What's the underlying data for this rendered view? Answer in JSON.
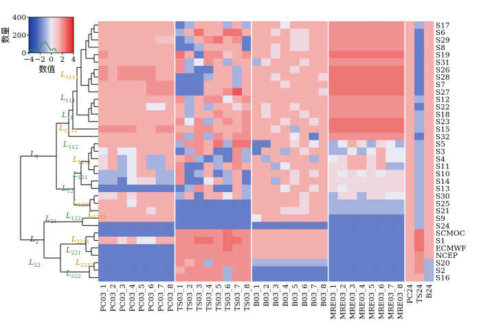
{
  "chart_data": {
    "type": "heatmap",
    "colorbar": {
      "label": "数值",
      "ylabel": "数量",
      "x_ticks": [
        "−4",
        "−2",
        "0",
        "2",
        "4"
      ],
      "y_ticks": [
        "0",
        "200",
        "400"
      ],
      "range": [
        -4,
        4
      ],
      "colors": [
        "#1b3ea0",
        "#3d5bb8",
        "#8f9fd6",
        "#e9e9f4",
        "#f6b8b8",
        "#ee6a6a",
        "#e01e1e"
      ]
    },
    "columns": [
      "PC03_1",
      "PC03_2",
      "PC03_3",
      "PC03_4",
      "PC03_5",
      "PC03_6",
      "PC03_7",
      "PC03_8",
      "TS03_1",
      "TS03_2",
      "TS03_3",
      "TS03_4",
      "TS03_5",
      "TS03_6",
      "TS03_7",
      "TS03_8",
      "B03_1",
      "B03_2",
      "B03_3",
      "B03_4",
      "B03_5",
      "B03_6",
      "B03_7",
      "B03_8",
      "MRE03_1",
      "MRE03_2",
      "MRE03_3",
      "MRE03_4",
      "MRE03_5",
      "MRE03_6",
      "MRE03_7",
      "MRE03_8",
      "PC24",
      "TS24",
      "B24"
    ],
    "rows": [
      "S17",
      "S6",
      "S29",
      "S8",
      "S19",
      "S31",
      "S26",
      "S28",
      "S7",
      "S27",
      "S12",
      "S22",
      "S18",
      "S23",
      "S15",
      "S32",
      "S5",
      "S3",
      "S4",
      "S11",
      "S10",
      "S14",
      "S13",
      "S30",
      "S25",
      "S21",
      "S9",
      "S24",
      "SCMOC",
      "S1",
      "ECMWF",
      "NCEP",
      "S20",
      "S2",
      "S16"
    ],
    "values": [
      [
        1.5,
        1.5,
        1.5,
        1.5,
        1.5,
        1.5,
        1.5,
        1.5,
        -2,
        -1,
        1.5,
        1.5,
        1.5,
        -1,
        1.5,
        -1,
        1.5,
        1.5,
        1.5,
        0,
        1.5,
        1.5,
        1.5,
        1.5,
        2,
        2,
        2,
        2,
        2,
        2,
        2,
        2,
        1.5,
        -1,
        1.5
      ],
      [
        1.5,
        1.5,
        1.5,
        1.5,
        1.5,
        1.5,
        1.5,
        1.5,
        -1,
        1.5,
        2.5,
        1.5,
        1.5,
        2.5,
        2.5,
        1.5,
        1.5,
        1.5,
        0.5,
        1.5,
        0.5,
        0.5,
        1.5,
        1.5,
        2,
        2,
        2,
        2,
        2,
        2,
        2,
        2,
        1.5,
        -2,
        1.5
      ],
      [
        1.5,
        1.5,
        1.5,
        1.5,
        1.5,
        1.5,
        1,
        1,
        -2,
        -1,
        1.5,
        2,
        2.5,
        1.5,
        2,
        -2,
        1.5,
        1.5,
        1.5,
        1.5,
        0.5,
        0.5,
        1.5,
        1.5,
        2,
        2,
        2,
        2,
        2,
        2,
        2,
        2,
        1.5,
        -2,
        1.5
      ],
      [
        1.5,
        1.5,
        1.5,
        1.5,
        1.5,
        1.5,
        1.5,
        1.5,
        -2,
        -2,
        -1,
        1.5,
        1.5,
        1.5,
        1.5,
        -2,
        1.5,
        1.5,
        0.5,
        1.5,
        0.5,
        0.5,
        1.5,
        1.5,
        2,
        2,
        2,
        2,
        2,
        2,
        2,
        2,
        1.5,
        -2,
        1.5
      ],
      [
        2,
        1.5,
        1.5,
        1.5,
        1.5,
        1.5,
        1.5,
        1.5,
        2.5,
        1.5,
        -2,
        2,
        2,
        1,
        1.5,
        2,
        1.5,
        1.5,
        0.5,
        1.5,
        1.5,
        1.5,
        1.5,
        1.5,
        2.5,
        2.5,
        2.5,
        2.5,
        2.5,
        2.5,
        2.5,
        2.5,
        1.5,
        -2,
        1.5
      ],
      [
        1.5,
        1.5,
        1.5,
        1.5,
        1.5,
        1.5,
        1.5,
        1.5,
        2,
        -1,
        0,
        2,
        1.5,
        -1,
        1.5,
        1.5,
        -1,
        0.5,
        1.5,
        1.5,
        1.5,
        0.5,
        1.5,
        1.5,
        2,
        2,
        2,
        2,
        2,
        2,
        2,
        2,
        1.5,
        -2,
        1.5
      ],
      [
        2,
        1.5,
        2,
        2,
        2,
        2,
        1.5,
        1.5,
        2,
        -1,
        -2,
        -2,
        1.5,
        1.5,
        -1,
        1.5,
        1.5,
        1.5,
        1.5,
        1.5,
        0.5,
        1.5,
        1.5,
        1.5,
        2.5,
        2.5,
        2.5,
        2.5,
        2.5,
        2.5,
        2.5,
        2.5,
        1.5,
        -2,
        1.5
      ],
      [
        2,
        1.5,
        2,
        2,
        2,
        2,
        1.5,
        1.5,
        -2,
        -2,
        -2,
        -1,
        1.5,
        1.5,
        -1,
        1.5,
        1.5,
        1.5,
        0.5,
        1.5,
        1.5,
        1.5,
        1.5,
        0.5,
        2.5,
        2.5,
        2.5,
        2.5,
        2.5,
        2.5,
        2.5,
        2.5,
        1.5,
        -2,
        1.5
      ],
      [
        1.5,
        1.5,
        1.5,
        1.5,
        1.5,
        2,
        2,
        2,
        -2,
        -2,
        -2,
        1.5,
        1.5,
        1.5,
        -1,
        1.5,
        1.5,
        1.5,
        1.5,
        0.5,
        1.5,
        1.5,
        1.5,
        1.5,
        2.5,
        2.5,
        2.5,
        2.5,
        2.5,
        2.5,
        2.5,
        2.5,
        1.5,
        -2,
        1.5
      ],
      [
        1.5,
        1.5,
        1.5,
        1.5,
        1.5,
        2,
        2,
        2,
        -2,
        -2,
        -2,
        1.5,
        1.5,
        2,
        3,
        1.5,
        1.5,
        1.5,
        1.5,
        1.5,
        1.5,
        1.5,
        1.5,
        0.5,
        2.5,
        2.5,
        2.5,
        2.5,
        2.5,
        2.5,
        2.5,
        2.5,
        1.5,
        -2,
        1.5
      ],
      [
        1.5,
        1.5,
        1.5,
        1.5,
        1.5,
        1.5,
        1.5,
        1.5,
        2,
        -1,
        1.5,
        2,
        2,
        0,
        1.5,
        2,
        1.5,
        1.5,
        1.5,
        1.5,
        1.5,
        1.5,
        1.5,
        1.5,
        2,
        2,
        2,
        2,
        2,
        2,
        2,
        2,
        1.5,
        -1,
        1.5
      ],
      [
        1.5,
        1.5,
        1.5,
        1.5,
        1.5,
        0,
        0,
        1.5,
        1.5,
        -1,
        1.5,
        -1,
        1.5,
        1.5,
        0.5,
        1.5,
        1.5,
        0.5,
        1.5,
        1.5,
        0.5,
        1.5,
        1.5,
        1.5,
        2,
        2,
        2,
        2,
        2,
        2,
        2,
        2,
        1.5,
        -2,
        1.5
      ],
      [
        1.5,
        1.5,
        1.5,
        1.5,
        1.5,
        1.5,
        1.5,
        1.5,
        1.5,
        -1,
        1.5,
        1.5,
        2,
        1.5,
        1.5,
        2,
        1.5,
        0.5,
        1.5,
        1.5,
        1.5,
        0.5,
        1.5,
        1.5,
        2,
        2,
        2,
        2,
        2,
        2,
        2,
        2,
        1.5,
        -1,
        1.5
      ],
      [
        1.5,
        1.5,
        1.5,
        1.5,
        1.5,
        1.5,
        1.5,
        1.5,
        2,
        0,
        2,
        -1,
        1.5,
        2,
        1.5,
        2,
        1.5,
        1.5,
        1.5,
        0.5,
        1.5,
        1.5,
        0.5,
        1.5,
        2.5,
        2.5,
        2.5,
        2.5,
        2.5,
        2.5,
        2.5,
        2.5,
        1.5,
        -1,
        1.5
      ],
      [
        2,
        2,
        2,
        2,
        1.5,
        1.5,
        2,
        2,
        1.5,
        1.5,
        2,
        2,
        1.5,
        1.5,
        1.5,
        2,
        1.5,
        1.5,
        0.5,
        1.5,
        -1,
        1.5,
        1.5,
        1.5,
        2.5,
        2.5,
        2.5,
        2.5,
        2.5,
        2.5,
        2.5,
        2.5,
        1.5,
        -1,
        1.5
      ],
      [
        1.5,
        1.5,
        1.5,
        1.5,
        1.5,
        1.5,
        1.5,
        1.5,
        2,
        -1,
        2,
        -1,
        2,
        1.5,
        2,
        2,
        1.5,
        1.5,
        1.5,
        1.5,
        0,
        1.5,
        -2,
        1.5,
        2,
        2,
        2,
        2,
        2,
        2,
        2,
        2,
        1.5,
        -2,
        1.5
      ],
      [
        1.5,
        1.5,
        1.5,
        1.5,
        1.5,
        1.5,
        1.5,
        1.5,
        -1,
        2,
        2,
        1.5,
        2.5,
        -1,
        2.5,
        2.5,
        -2,
        -2,
        1.5,
        1.5,
        0.5,
        1.5,
        0,
        1.5,
        -1,
        0,
        1.5,
        0.5,
        -1,
        0.5,
        0,
        -1,
        1.5,
        -1,
        1.5
      ],
      [
        0,
        1.5,
        0,
        0,
        1.5,
        1.5,
        1.5,
        1.5,
        -2,
        -1,
        2,
        1.5,
        -2,
        -2,
        2,
        -1,
        -2,
        1.5,
        1.5,
        -1,
        1.5,
        0.5,
        1.5,
        1.5,
        -1,
        -1,
        0,
        -1,
        0,
        1.5,
        0,
        0,
        1.5,
        -1,
        1.5
      ],
      [
        0.5,
        1.5,
        -1,
        0,
        1.5,
        -1,
        -1,
        1.5,
        1.5,
        2,
        -1,
        -2,
        -1,
        -2,
        2,
        -1,
        1.5,
        -1,
        1.5,
        1.5,
        1.5,
        1.5,
        -1,
        1.5,
        0,
        0.5,
        1.5,
        1.5,
        0.5,
        1.5,
        0,
        0,
        1.5,
        -1,
        1.5
      ],
      [
        0.5,
        1.5,
        -1,
        0,
        1.5,
        -1,
        -1,
        1.5,
        2,
        -2,
        -2,
        1.5,
        -1,
        1.5,
        2,
        1.5,
        1.5,
        1.5,
        -1,
        0,
        1.5,
        1.5,
        1.5,
        1.5,
        0.5,
        0.5,
        1.5,
        1.5,
        0.5,
        1.5,
        -1,
        -1,
        1.5,
        -1,
        1.5
      ],
      [
        -1,
        -1,
        -1,
        0,
        1.5,
        1.5,
        -1,
        -1,
        2,
        -2,
        -1,
        1.5,
        -2,
        -1,
        1.5,
        -2,
        1.5,
        1.5,
        1.5,
        1.5,
        0.5,
        1.5,
        0.5,
        1.5,
        0.5,
        0,
        0.5,
        0,
        0.5,
        0,
        0.5,
        0.5,
        1.5,
        -1,
        1.5
      ],
      [
        -1,
        -1,
        -2,
        0,
        0.5,
        0.5,
        -1,
        -1,
        2,
        -2,
        -2,
        0,
        1.5,
        -1,
        1.5,
        -2,
        1.5,
        1.5,
        -1,
        1.5,
        0.5,
        1.5,
        1.5,
        1.5,
        0.5,
        0.5,
        0.5,
        0.5,
        0.5,
        0.5,
        0.5,
        0.5,
        1.5,
        -1,
        1.5
      ],
      [
        -2,
        -2,
        -2,
        -2,
        -2,
        -2,
        -2,
        -2,
        -2,
        -1,
        2,
        1.5,
        -2,
        -2,
        1.5,
        -1,
        1.5,
        1.5,
        1.5,
        0,
        1.5,
        1.5,
        0.5,
        1.5,
        0.5,
        0,
        0.5,
        0.5,
        0.5,
        0.5,
        0.5,
        0.5,
        1.5,
        -1,
        1.5
      ],
      [
        0.5,
        0.5,
        1.5,
        0.5,
        1.5,
        1.5,
        1.5,
        1.5,
        -1,
        1.5,
        -2,
        1.5,
        1.5,
        0,
        1.5,
        -1,
        1.5,
        1.5,
        1.5,
        1.5,
        1.5,
        0.5,
        1.5,
        1.5,
        -1,
        0.5,
        0.5,
        -1,
        0.5,
        0.5,
        0,
        0,
        1.5,
        -1,
        1.5
      ],
      [
        1.5,
        1.5,
        1.5,
        0,
        1.5,
        1.5,
        1.5,
        1.5,
        -2,
        -2,
        -2,
        -2,
        -2,
        -2,
        -2,
        -2,
        1.5,
        1.5,
        1.5,
        1.5,
        1.5,
        0.5,
        1.5,
        1.5,
        -1,
        -1,
        -1,
        -1,
        -1,
        -1,
        -1,
        -1,
        1.5,
        -1,
        1.5
      ],
      [
        1.5,
        1.5,
        1.5,
        1.5,
        1.5,
        0.5,
        1.5,
        1.5,
        -2,
        -2,
        -2,
        -2,
        -2,
        -2,
        -2,
        -2,
        1.5,
        1.5,
        1.5,
        0.5,
        0.5,
        0.5,
        1.5,
        1.5,
        -1,
        -1,
        -1,
        -1,
        -1,
        -1,
        -1,
        -1,
        1.5,
        -1,
        1.5
      ],
      [
        1.5,
        1.5,
        1.5,
        1.5,
        1.5,
        1.5,
        1.5,
        1.5,
        -2,
        -2,
        -2,
        -2,
        -2,
        -2,
        -2,
        -2,
        0,
        1.5,
        1.5,
        1.5,
        1.5,
        1.5,
        1.5,
        1.5,
        -2,
        -2,
        -2,
        -2,
        -2,
        -2,
        -2,
        -2,
        1.5,
        -1,
        1.5
      ],
      [
        -2,
        -2,
        -2,
        -2,
        -2,
        -2,
        -2,
        -2,
        -2,
        -2,
        -2,
        -2,
        -2,
        -2,
        -2,
        -2,
        -2,
        -2,
        -2,
        -2,
        -2,
        -2,
        -2,
        -2,
        -2,
        -2,
        -2,
        -2,
        -2,
        -2,
        -2,
        -2,
        1.5,
        -1,
        1.5
      ],
      [
        -2,
        -2,
        -2,
        -2,
        -2,
        -2,
        -2,
        -2,
        2,
        2,
        2,
        2,
        2,
        2.5,
        2,
        2,
        1.5,
        1.5,
        1.5,
        1.5,
        1.5,
        1.5,
        1.5,
        1.5,
        -2,
        -2,
        -2,
        -2,
        -2,
        -2,
        -2,
        -2,
        1.5,
        2.5,
        1.5
      ],
      [
        1.5,
        1.5,
        0.5,
        1.5,
        0,
        0,
        1.5,
        1.5,
        2,
        2,
        2.5,
        2.5,
        2,
        2.5,
        2.5,
        2,
        1.5,
        1.5,
        1.5,
        1.5,
        1.5,
        1.5,
        1.5,
        1.5,
        -2,
        -2,
        -2,
        -2,
        -2,
        -2,
        -2,
        -2,
        1.5,
        2.5,
        1.5
      ],
      [
        -2,
        -2,
        -2,
        -2,
        -2,
        -2,
        -2,
        -2,
        2,
        2,
        2,
        2,
        2,
        2.5,
        2,
        2,
        1.5,
        1.5,
        1.5,
        1.5,
        1.5,
        1.5,
        1.5,
        1.5,
        -2,
        -2,
        -2,
        -2,
        -2,
        -2,
        -2,
        -2,
        1.5,
        2.5,
        1.5
      ],
      [
        -2,
        -2,
        -2,
        -2,
        -2,
        -2,
        -2,
        -2,
        2,
        2,
        2,
        2,
        2,
        2,
        2,
        2,
        1.5,
        1.5,
        1.5,
        1.5,
        1.5,
        1.5,
        1.5,
        1.5,
        -2,
        -2,
        -2,
        -2,
        -2,
        -2,
        -2,
        -2,
        1.5,
        2,
        1.5
      ],
      [
        -2,
        -2,
        -2,
        -2,
        -2,
        -2,
        -2,
        -2,
        2,
        1.5,
        2,
        -1,
        2,
        2,
        2,
        2,
        -1,
        -1,
        -1,
        -1,
        -1,
        -1,
        -1,
        -1,
        -2,
        -2,
        -2,
        -2,
        -2,
        -2,
        -2,
        -2,
        1.5,
        2,
        -1
      ],
      [
        -2,
        -2,
        -2,
        -2,
        -2,
        -2,
        -2,
        -2,
        1.5,
        2,
        2,
        2,
        2,
        -1,
        2,
        2,
        -2,
        -2,
        -2,
        -2,
        -2,
        -2,
        -2,
        -2,
        -2,
        -2,
        -2,
        -2,
        -2,
        -2,
        -2,
        -2,
        1.5,
        2,
        -1
      ],
      [
        -2,
        -2,
        -2,
        -2,
        -2,
        -2,
        -2,
        -2,
        2,
        2,
        2,
        2,
        2,
        -1,
        2,
        2,
        -2,
        -2,
        -2,
        -2,
        -2,
        -2,
        -2,
        -2,
        -2,
        -2,
        -2,
        -2,
        -2,
        -2,
        -2,
        -2,
        1.5,
        1.5,
        -1
      ]
    ],
    "dendrogram_labels": [
      {
        "text": "L",
        "sub": "1111",
        "color": "#c8860a"
      },
      {
        "text": "L",
        "sub": "111",
        "color": "#2e8b2e"
      },
      {
        "text": "L",
        "sub": "11",
        "color": "#2e8b2e"
      },
      {
        "text": "L",
        "sub": "112",
        "color": "#2e8b2e"
      },
      {
        "text": "L",
        "sub": "1112",
        "color": "#c8860a"
      },
      {
        "text": "L",
        "sub": "1",
        "color": "#333333"
      },
      {
        "text": "L",
        "sub": "1211",
        "color": "#c8860a"
      },
      {
        "text": "L",
        "sub": "121",
        "color": "#2e8b2e"
      },
      {
        "text": "L",
        "sub": "12",
        "color": "#2e8b2e"
      },
      {
        "text": "L",
        "sub": "1221",
        "color": "#c8860a"
      },
      {
        "text": "L",
        "sub": "122",
        "color": "#2e8b2e"
      },
      {
        "text": "L",
        "sub": "1222",
        "color": "#c8860a"
      },
      {
        "text": "L",
        "sub": "21",
        "color": "#2e8b2e"
      },
      {
        "text": "L",
        "sub": "2",
        "color": "#333333"
      },
      {
        "text": "L",
        "sub": "2211",
        "color": "#c8860a"
      },
      {
        "text": "L",
        "sub": "221",
        "color": "#2e8b2e"
      },
      {
        "text": "L",
        "sub": "22",
        "color": "#2e8b2e"
      },
      {
        "text": "L",
        "sub": "2212",
        "color": "#c8860a"
      },
      {
        "text": "L",
        "sub": "222",
        "color": "#2e8b2e"
      }
    ]
  }
}
